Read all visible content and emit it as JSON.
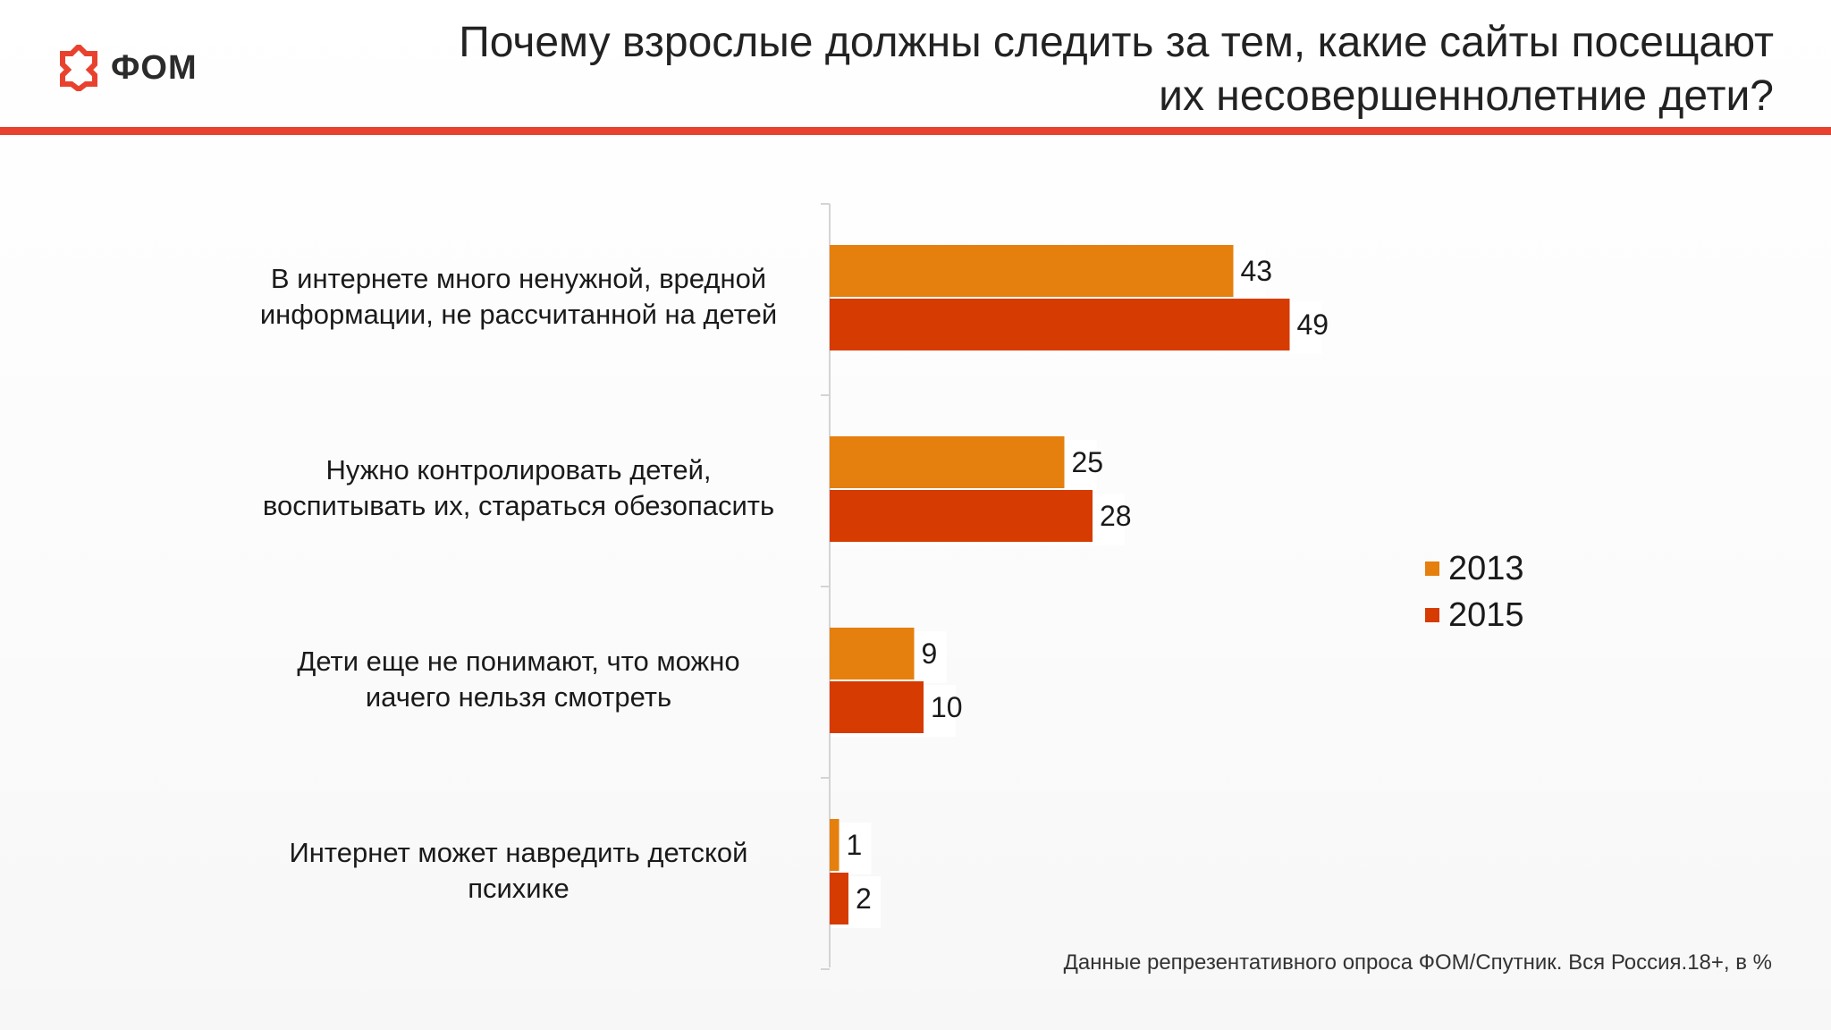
{
  "brand": {
    "logo_text": "ФОМ",
    "logo_icon": "fom-logo-icon",
    "accent_color": "#e8422f"
  },
  "header": {
    "title_line1": "Почему взрослые должны следить за тем, какие сайты посещают",
    "title_line2": "их несовершеннолетние дети?"
  },
  "chart_data": {
    "type": "bar",
    "orientation": "horizontal",
    "categories": [
      [
        "В интернете много ненужной, вредной",
        "информации, не рассчитанной на детей"
      ],
      [
        "Нужно контролировать детей,",
        "воспитывать их, стараться обезопасить"
      ],
      [
        "Дети еще не понимают, что можно",
        "иачего нельзя смотреть"
      ],
      [
        "Интернет может навредить детской",
        "психике"
      ]
    ],
    "series": [
      {
        "name": "2013",
        "color": "#e57f0e",
        "values": [
          43,
          25,
          9,
          1
        ]
      },
      {
        "name": "2015",
        "color": "#d63b02",
        "values": [
          49,
          28,
          10,
          2
        ]
      }
    ],
    "xlim": [
      0,
      50
    ],
    "grid": false,
    "legend_position": "right",
    "data_labels": true
  },
  "footnote": "Данные репрезентативного опроса ФОМ/Спутник. Вся Россия.18+, в %"
}
